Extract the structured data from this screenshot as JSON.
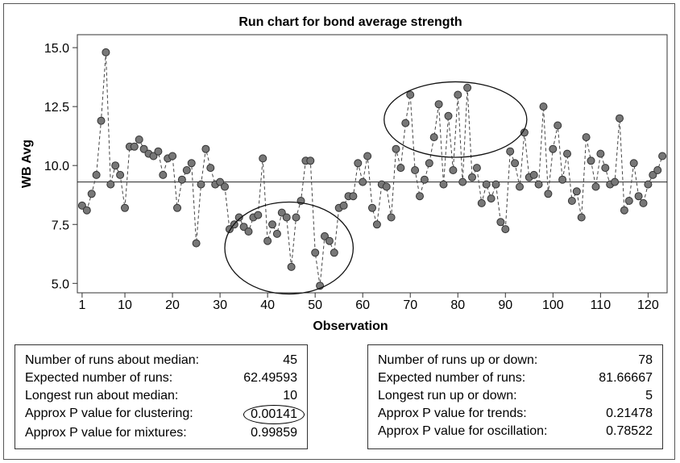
{
  "chart_data": {
    "type": "scatter",
    "title": "Run chart for bond average strength",
    "xlabel": "Observation",
    "ylabel": "WB Avg",
    "xlim": [
      0,
      124
    ],
    "ylim": [
      4.6,
      15.55
    ],
    "x_ticks": [
      1,
      10,
      20,
      30,
      40,
      50,
      60,
      70,
      80,
      90,
      100,
      110,
      120
    ],
    "y_ticks": [
      5.0,
      7.5,
      10.0,
      12.5,
      15.0
    ],
    "y_tick_labels": [
      "5.0",
      "7.5",
      "10.0",
      "12.5",
      "15.0"
    ],
    "median": 9.3,
    "grid": false,
    "connector_style": "dashed",
    "values": [
      8.3,
      8.1,
      8.8,
      9.6,
      11.9,
      14.8,
      9.2,
      10.0,
      9.6,
      8.2,
      10.8,
      10.8,
      11.1,
      10.7,
      10.5,
      10.4,
      10.6,
      9.6,
      10.3,
      10.4,
      8.2,
      9.4,
      9.8,
      10.1,
      6.7,
      9.2,
      10.7,
      9.9,
      9.2,
      9.3,
      9.1,
      7.3,
      7.5,
      7.8,
      7.4,
      7.2,
      7.8,
      7.9,
      10.3,
      6.8,
      7.5,
      7.1,
      8.0,
      7.8,
      5.7,
      7.8,
      8.5,
      10.2,
      10.2,
      6.3,
      4.9,
      7.0,
      6.8,
      6.3,
      8.2,
      8.3,
      8.7,
      8.7,
      10.1,
      9.3,
      10.4,
      8.2,
      7.5,
      9.2,
      9.1,
      7.8,
      10.7,
      9.9,
      11.8,
      13.0,
      9.8,
      8.7,
      9.4,
      10.1,
      11.2,
      12.6,
      9.2,
      12.1,
      9.8,
      13.0,
      9.3,
      13.3,
      9.5,
      9.9,
      8.4,
      9.2,
      8.6,
      9.2,
      7.6,
      7.3,
      10.6,
      10.1,
      9.1,
      11.4,
      9.5,
      9.6,
      9.2,
      12.5,
      8.8,
      10.7,
      11.7,
      9.4,
      10.5,
      8.5,
      8.9,
      7.8,
      11.2,
      10.2,
      9.1,
      10.5,
      9.9,
      9.2,
      9.3,
      12.0,
      8.1,
      8.5,
      10.1,
      8.7,
      8.4,
      9.2,
      9.6,
      9.8,
      10.4
    ],
    "annotations": [
      {
        "shape": "ellipse",
        "cx": 44.5,
        "cy": 6.5,
        "rx": 13.5,
        "ry": 1.95
      },
      {
        "shape": "ellipse",
        "cx": 79.5,
        "cy": 11.95,
        "rx": 15.0,
        "ry": 1.6
      }
    ]
  },
  "stats_left": [
    {
      "label": "Number of runs about median:",
      "value": "45"
    },
    {
      "label": "Expected number of runs:",
      "value": "62.49593"
    },
    {
      "label": "Longest run about median:",
      "value": "10"
    },
    {
      "label": "Approx P value for clustering:",
      "value": "0.00141",
      "circled": true
    },
    {
      "label": "Approx P value for mixtures:",
      "value": "0.99859"
    }
  ],
  "stats_right": [
    {
      "label": "Number of runs up or down:",
      "value": "78"
    },
    {
      "label": "Expected number of runs:",
      "value": "81.66667"
    },
    {
      "label": "Longest run up or down:",
      "value": "5"
    },
    {
      "label": "Approx P value for trends:",
      "value": "0.21478"
    },
    {
      "label": "Approx P value for oscillation:",
      "value": "0.78522"
    }
  ]
}
